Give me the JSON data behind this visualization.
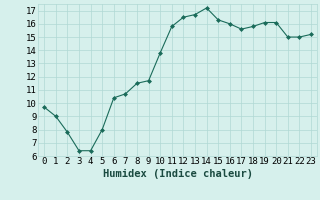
{
  "x": [
    0,
    1,
    2,
    3,
    4,
    5,
    6,
    7,
    8,
    9,
    10,
    11,
    12,
    13,
    14,
    15,
    16,
    17,
    18,
    19,
    20,
    21,
    22,
    23
  ],
  "y": [
    9.7,
    9.0,
    7.8,
    6.4,
    6.4,
    8.0,
    10.4,
    10.7,
    11.5,
    11.7,
    13.8,
    15.8,
    16.5,
    16.7,
    17.2,
    16.3,
    16.0,
    15.6,
    15.8,
    16.1,
    16.1,
    15.0,
    15.0,
    15.2
  ],
  "line_color": "#1a6b5a",
  "marker_color": "#1a6b5a",
  "bg_color": "#d6f0ec",
  "grid_color": "#b0d9d4",
  "xlabel": "Humidex (Indice chaleur)",
  "xlabel_color": "#1a4a40",
  "ylim": [
    6,
    17.5
  ],
  "xlim": [
    -0.5,
    23.5
  ],
  "yticks": [
    6,
    7,
    8,
    9,
    10,
    11,
    12,
    13,
    14,
    15,
    16,
    17
  ],
  "xticks": [
    0,
    1,
    2,
    3,
    4,
    5,
    6,
    7,
    8,
    9,
    10,
    11,
    12,
    13,
    14,
    15,
    16,
    17,
    18,
    19,
    20,
    21,
    22,
    23
  ],
  "tick_label_size": 6.5,
  "xlabel_size": 7.5
}
